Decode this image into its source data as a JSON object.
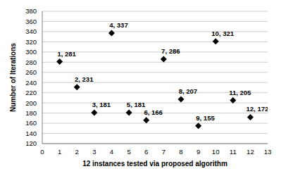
{
  "chart_data": {
    "type": "scatter",
    "x_label": "12 instances tested via proposed algorithm",
    "y_label": "Number of Iterations",
    "x": [
      1,
      2,
      3,
      4,
      5,
      6,
      7,
      8,
      9,
      10,
      11,
      12
    ],
    "values": [
      281,
      231,
      181,
      337,
      181,
      166,
      286,
      207,
      155,
      321,
      205,
      172
    ],
    "value_labels": [
      "1, 281",
      "2, 231",
      "3, 181",
      "4, 337",
      "5, 181",
      "6, 166",
      "7, 286",
      "8, 207",
      "9, 155",
      "10, 321",
      "11, 205",
      "12, 172"
    ],
    "data_labels": true,
    "color": "#000000",
    "marker": "diamond",
    "xlim": [
      0,
      13
    ],
    "xticks": [
      0,
      1,
      2,
      3,
      4,
      5,
      6,
      7,
      8,
      9,
      10,
      11,
      12,
      13
    ],
    "ylim": [
      120,
      380
    ],
    "yticks": [
      120,
      140,
      160,
      180,
      200,
      220,
      240,
      260,
      280,
      300,
      320,
      340,
      360,
      380
    ],
    "grid": true
  }
}
